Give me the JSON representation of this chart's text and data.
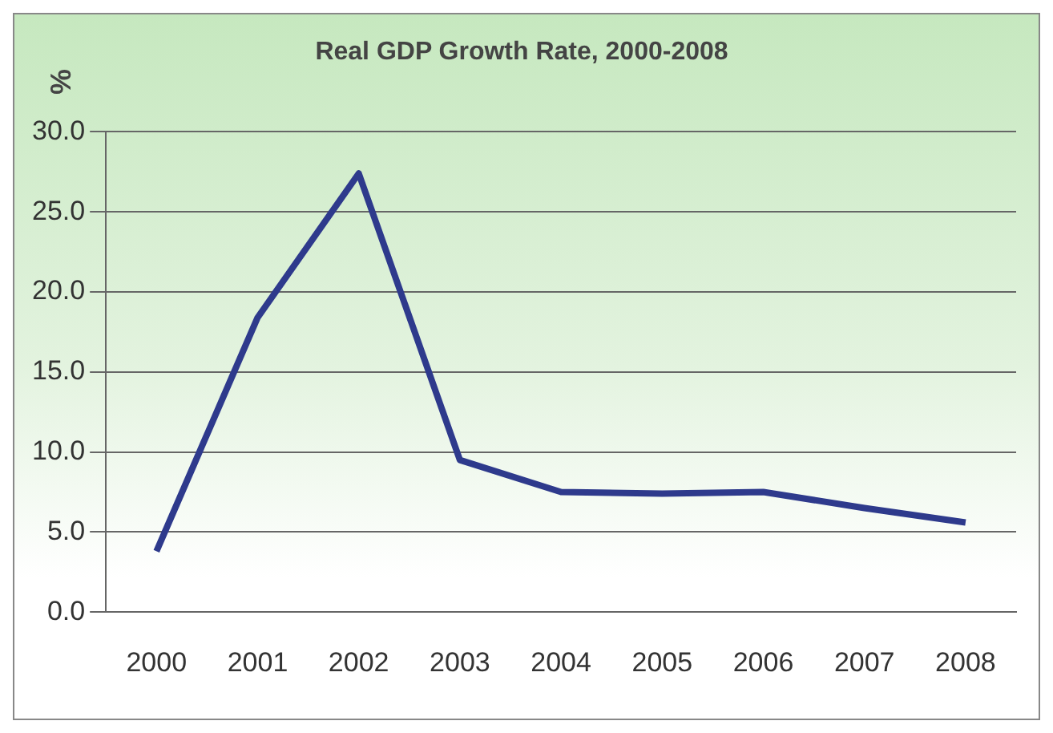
{
  "chart_data": {
    "type": "line",
    "title": "Real GDP Growth Rate, 2000-2008",
    "ylabel": "%",
    "categories": [
      "2000",
      "2001",
      "2002",
      "2003",
      "2004",
      "2005",
      "2006",
      "2007",
      "2008"
    ],
    "series": [
      {
        "color": "#2e3a8c",
        "values": [
          3.8,
          18.4,
          27.4,
          9.5,
          7.5,
          7.4,
          7.5,
          6.5,
          5.6
        ]
      }
    ],
    "ylim": [
      0,
      30
    ],
    "yticks": [
      {
        "value": 0,
        "label": "0.0"
      },
      {
        "value": 5,
        "label": "5.0"
      },
      {
        "value": 10,
        "label": "10.0"
      },
      {
        "value": 15,
        "label": "15.0"
      },
      {
        "value": 20,
        "label": "20.0"
      },
      {
        "value": 25,
        "label": "25.0"
      },
      {
        "value": 30,
        "label": "30.0"
      }
    ],
    "grid": "y",
    "legend": false,
    "marker": "none",
    "line_style": "solid"
  }
}
